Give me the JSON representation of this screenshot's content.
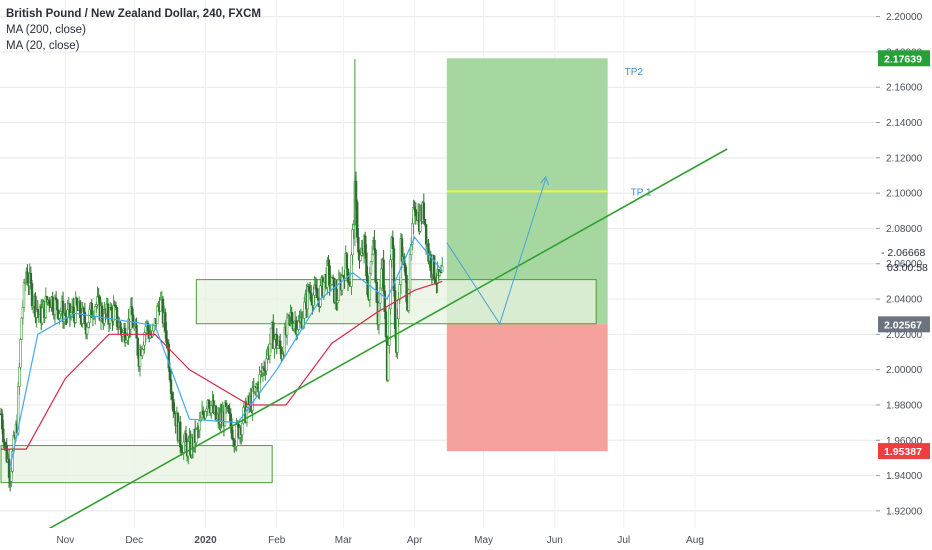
{
  "legend": {
    "title": "British Pound / New Zealand Dollar, 240, FXCM",
    "ma200": "MA (200, close)",
    "ma20": "MA (20, close)"
  },
  "colors": {
    "candle_up": "#3c9b3c",
    "candle_down": "#2e6b2e",
    "ma20": "#3fa9f5",
    "ma200": "#d6294a",
    "trendline": "#2fa02f",
    "profit_zone": "#a6d7a1",
    "loss_zone": "#f5a29c",
    "tp1_line": "#f5f53c",
    "box_fill": "#e8f3e1",
    "box_stroke": "#4f9a3b",
    "label_green": "#26a038",
    "label_red": "#ef3e3e"
  },
  "chart_data": {
    "type": "candlestick",
    "title": "British Pound / New Zealand Dollar, 240, FXCM",
    "y_ticks": [
      "1.92000",
      "1.94000",
      "1.96000",
      "1.98000",
      "2.00000",
      "2.02000",
      "2.04000",
      "2.06000",
      "2.08000",
      "2.10000",
      "2.12000",
      "2.14000",
      "2.16000",
      "2.18000",
      "2.20000"
    ],
    "x_ticks": [
      "Nov",
      "Dec",
      "2020",
      "Feb",
      "Mar",
      "Apr",
      "May",
      "Jun",
      "Jul",
      "Aug"
    ],
    "ylim": [
      1.912,
      2.206
    ],
    "price_path": [
      [
        "Oct 04",
        1.975
      ],
      [
        "Oct 06",
        1.955
      ],
      [
        "Oct 08",
        1.942
      ],
      [
        "Oct 11",
        1.97
      ],
      [
        "Oct 13",
        2.03
      ],
      [
        "Oct 15",
        2.056
      ],
      [
        "Oct 18",
        2.04
      ],
      [
        "Oct 21",
        2.03
      ],
      [
        "Oct 25",
        2.041
      ],
      [
        "Oct 29",
        2.035
      ],
      [
        "Nov 02",
        2.03
      ],
      [
        "Nov 06",
        2.034
      ],
      [
        "Nov 10",
        2.026
      ],
      [
        "Nov 14",
        2.038
      ],
      [
        "Nov 18",
        2.03
      ],
      [
        "Nov 22",
        2.033
      ],
      [
        "Nov 26",
        2.02
      ],
      [
        "Nov 30",
        2.03
      ],
      [
        "Dec 03",
        2.008
      ],
      [
        "Dec 06",
        2.025
      ],
      [
        "Dec 09",
        2.018
      ],
      [
        "Dec 12",
        2.04
      ],
      [
        "Dec 15",
        2.02
      ],
      [
        "Dec 18",
        1.98
      ],
      [
        "Dec 21",
        1.96
      ],
      [
        "Dec 25",
        1.955
      ],
      [
        "Dec 29",
        1.965
      ],
      [
        "Jan 02",
        1.985
      ],
      [
        "Jan 06",
        1.97
      ],
      [
        "Jan 10",
        1.975
      ],
      [
        "Jan 14",
        1.962
      ],
      [
        "Jan 18",
        1.975
      ],
      [
        "Jan 22",
        1.985
      ],
      [
        "Jan 26",
        2.0
      ],
      [
        "Jan 30",
        2.02
      ],
      [
        "Feb 03",
        2.01
      ],
      [
        "Feb 07",
        2.03
      ],
      [
        "Feb 11",
        2.025
      ],
      [
        "Feb 15",
        2.045
      ],
      [
        "Feb 19",
        2.04
      ],
      [
        "Feb 23",
        2.055
      ],
      [
        "Feb 27",
        2.04
      ],
      [
        "Mar 02",
        2.06
      ],
      [
        "Mar 04",
        2.05
      ],
      [
        "Mar 06",
        2.1
      ],
      [
        "Mar 08",
        2.06
      ],
      [
        "Mar 10",
        2.07
      ],
      [
        "Mar 12",
        2.04
      ],
      [
        "Mar 14",
        2.08
      ],
      [
        "Mar 16",
        2.03
      ],
      [
        "Mar 18",
        2.06
      ],
      [
        "Mar 20",
        2.0
      ],
      [
        "Mar 22",
        2.08
      ],
      [
        "Mar 24",
        2.01
      ],
      [
        "Mar 26",
        2.07
      ],
      [
        "Mar 29",
        2.04
      ],
      [
        "Apr 01",
        2.095
      ],
      [
        "Apr 03",
        2.085
      ],
      [
        "Apr 05",
        2.09
      ],
      [
        "Apr 07",
        2.065
      ],
      [
        "Apr 09",
        2.058
      ],
      [
        "Apr 11",
        2.05
      ],
      [
        "Apr 13",
        2.052
      ]
    ],
    "spike_high": {
      "date": "Mar 06",
      "price": 2.176
    },
    "ma20_path": [
      [
        "Oct 08",
        1.945
      ],
      [
        "Oct 20",
        2.02
      ],
      [
        "Nov 05",
        2.032
      ],
      [
        "Nov 25",
        2.028
      ],
      [
        "Dec 10",
        2.025
      ],
      [
        "Dec 25",
        1.972
      ],
      [
        "Jan 15",
        1.97
      ],
      [
        "Feb 01",
        2.0
      ],
      [
        "Feb 20",
        2.04
      ],
      [
        "Mar 05",
        2.055
      ],
      [
        "Mar 20",
        2.04
      ],
      [
        "Apr 01",
        2.075
      ],
      [
        "Apr 13",
        2.056
      ]
    ],
    "ma200_path": [
      [
        "Oct 04",
        1.955
      ],
      [
        "Oct 15",
        1.955
      ],
      [
        "Nov 01",
        1.995
      ],
      [
        "Nov 20",
        2.02
      ],
      [
        "Dec 10",
        2.02
      ],
      [
        "Dec 25",
        2.0
      ],
      [
        "Jan 20",
        1.98
      ],
      [
        "Feb 05",
        1.98
      ],
      [
        "Feb 25",
        2.015
      ],
      [
        "Mar 15",
        2.032
      ],
      [
        "Apr 01",
        2.045
      ],
      [
        "Apr 13",
        2.05
      ]
    ],
    "trendline": {
      "from": [
        "Oct 25",
        1.91
      ],
      "to": [
        "Aug 15",
        2.125
      ]
    },
    "boxes": [
      {
        "from": "Oct 04",
        "to": "Jan 30",
        "low": 1.936,
        "high": 1.957
      },
      {
        "from": "Dec 28",
        "to": "Jun 19",
        "low": 2.026,
        "high": 2.051
      }
    ],
    "position": {
      "from": "Apr 15",
      "to": "Jun 24",
      "entry": 2.02567,
      "target": 2.17639,
      "stop": 1.95387,
      "tp1": 2.101
    },
    "projection": [
      [
        "Apr 15",
        2.072
      ],
      [
        "May 08",
        2.026
      ],
      [
        "May 28",
        2.108
      ]
    ],
    "annotations": {
      "tp2": "TP2",
      "tp1": "TP 1"
    },
    "price_labels": {
      "target": "2.17639",
      "current": "2.06668",
      "countdown": "03:00:58",
      "entry": "2.02567",
      "stop": "1.95387"
    }
  }
}
